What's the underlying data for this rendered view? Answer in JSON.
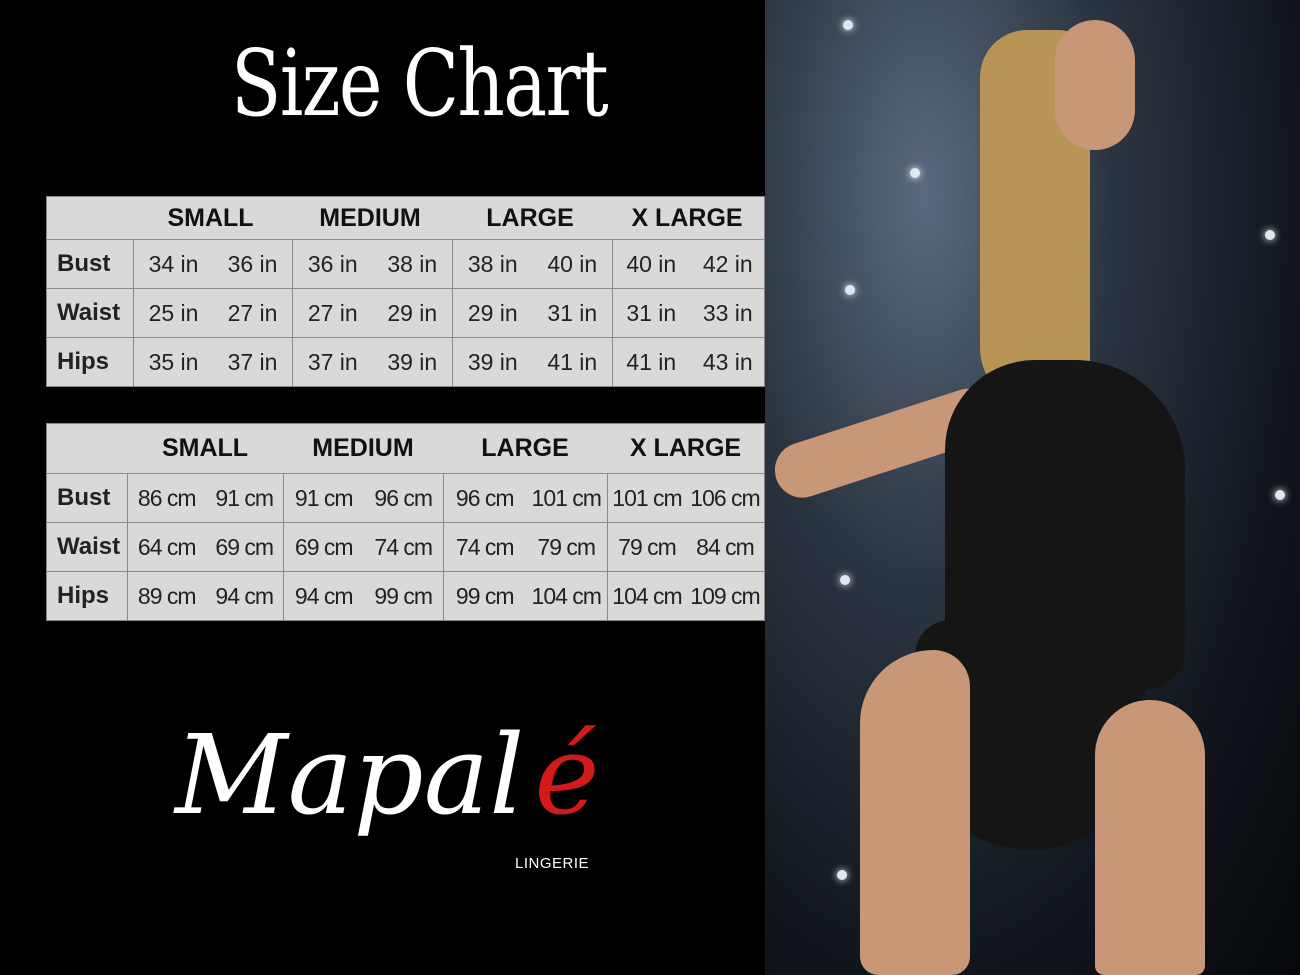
{
  "title": "Size Chart",
  "sizes": [
    "SMALL",
    "MEDIUM",
    "LARGE",
    "X LARGE"
  ],
  "inch_table": {
    "rows": [
      {
        "label": "Bust",
        "values": [
          "34 in",
          "36 in",
          "36 in",
          "38 in",
          "38 in",
          "40 in",
          "40 in",
          "42 in"
        ]
      },
      {
        "label": "Waist",
        "values": [
          "25 in",
          "27 in",
          "27 in",
          "29 in",
          "29 in",
          "31 in",
          "31 in",
          "33 in"
        ]
      },
      {
        "label": "Hips",
        "values": [
          "35 in",
          "37 in",
          "37 in",
          "39 in",
          "39 in",
          "41 in",
          "41 in",
          "43 in"
        ]
      }
    ]
  },
  "cm_table": {
    "rows": [
      {
        "label": "Bust",
        "values": [
          "86 cm",
          "91 cm",
          "91 cm",
          "96 cm",
          "96 cm",
          "101 cm",
          "101 cm",
          "106 cm"
        ]
      },
      {
        "label": "Waist",
        "values": [
          "64 cm",
          "69 cm",
          "69 cm",
          "74 cm",
          "74 cm",
          "79  cm",
          "79 cm",
          "84 cm"
        ]
      },
      {
        "label": "Hips",
        "values": [
          "89 cm",
          "94 cm",
          "94 cm",
          "99 cm",
          "99 cm",
          "104 cm",
          "104 cm",
          "109 cm"
        ]
      }
    ]
  },
  "brand": {
    "name_main": "Mapal",
    "name_accent": "é",
    "subtitle": "LINGERIE",
    "accent_color": "#d21a1a"
  }
}
